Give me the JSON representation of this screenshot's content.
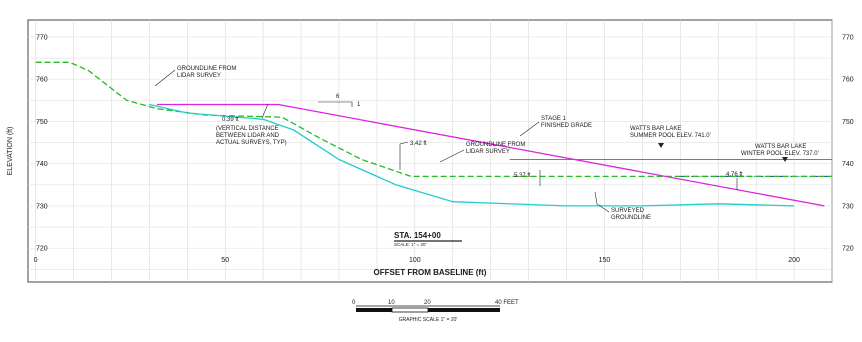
{
  "chart_data": {
    "type": "line",
    "xlabel": "OFFSET FROM BASELINE (ft)",
    "ylabel": "ELEVATION (ft)",
    "xlim": [
      -2,
      210
    ],
    "ylim": [
      712,
      774
    ],
    "x_ticks": [
      "0",
      "50",
      "100",
      "150",
      "200"
    ],
    "x_tick_values": [
      0,
      50,
      100,
      150,
      200
    ],
    "y_ticks": [
      "770",
      "760",
      "750",
      "740",
      "730",
      "720"
    ],
    "y_tick_values": [
      770,
      760,
      750,
      740,
      730,
      720
    ],
    "series": [
      {
        "name": "GROUNDLINE FROM LIDAR SURVEY",
        "color": "#22bb22",
        "dash": true,
        "points": [
          [
            0,
            764
          ],
          [
            9,
            764
          ],
          [
            14,
            762
          ],
          [
            24,
            755
          ],
          [
            32,
            753
          ],
          [
            45,
            751.5
          ],
          [
            65,
            751
          ],
          [
            75,
            746
          ],
          [
            86,
            741
          ],
          [
            99,
            737
          ],
          [
            120,
            737
          ],
          [
            150,
            737
          ],
          [
            175,
            737
          ],
          [
            210,
            737
          ]
        ]
      },
      {
        "name": "SURVEYED GROUNDLINE",
        "color": "#22cccc",
        "dash": false,
        "points": [
          [
            30,
            754
          ],
          [
            40,
            752
          ],
          [
            60,
            750.5
          ],
          [
            68,
            748
          ],
          [
            80,
            741
          ],
          [
            95,
            735
          ],
          [
            110,
            731
          ],
          [
            140,
            730
          ],
          [
            160,
            730
          ],
          [
            180,
            730.5
          ],
          [
            200,
            730
          ]
        ]
      },
      {
        "name": "STAGE 1 FINISHED GRADE",
        "color": "#dd22dd",
        "dash": false,
        "points": [
          [
            32,
            754
          ],
          [
            64,
            754
          ],
          [
            208,
            730
          ]
        ]
      }
    ],
    "water_levels": [
      {
        "label": "WATTS BAR LAKE SUMMER POOL ELEV. 741.0'",
        "elev": 741,
        "x_start": 125,
        "x_end": 210,
        "color": "#2299cc"
      },
      {
        "label": "WATTS BAR LAKE WINTER POOL ELEV. 737.0'",
        "elev": 737,
        "x_start": 170,
        "x_end": 210,
        "color": "#2233aa"
      }
    ],
    "annotations": {
      "groundline_lidar": [
        "GROUNDLINE FROM",
        "LIDAR SURVEY"
      ],
      "diff1": [
        "0.39 ft",
        "(VERTICAL DISTANCE",
        "BETWEEN LIDAR AND",
        "ACTUAL SURVEYS, TYP)"
      ],
      "diff2": "3.42 ft",
      "groundline_lidar2": [
        "GROUNDLINE FROM",
        "LIDAR SURVEY"
      ],
      "diff3": "5.37 ft",
      "stage1": [
        "STAGE 1",
        "FINISHED GRADE"
      ],
      "summer_pool": [
        "WATTS BAR LAKE",
        "SUMMER POOL ELEV. 741.0'"
      ],
      "winter_pool": [
        "WATTS BAR LAKE",
        "WINTER POOL ELEV. 737.0'"
      ],
      "diff4": "4.76 ft",
      "surveyed": [
        "SURVEYED",
        "GROUNDLINE"
      ],
      "slope_run": "6",
      "slope_rise": "1"
    },
    "station": {
      "label": "STA. 154+00",
      "scale": "SCALE: 1\" = 20'"
    },
    "graphic_scale": {
      "ticks": [
        "0",
        "10",
        "20",
        "40 FEET"
      ],
      "caption": "GRAPHIC SCALE 1\" = 20'"
    }
  }
}
